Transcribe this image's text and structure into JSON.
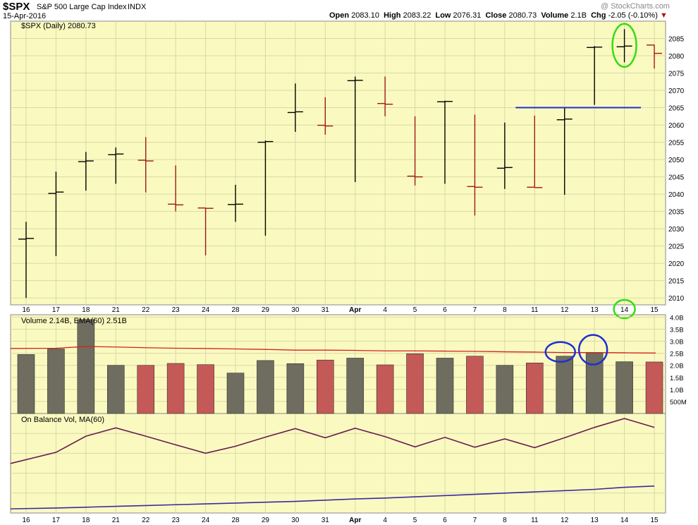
{
  "header": {
    "symbol": "$SPX",
    "name": "S&P 500 Large Cap Index",
    "exchange": "INDX",
    "date": "15-Apr-2016",
    "watermark": "@ StockCharts.com",
    "stats": {
      "open_label": "Open",
      "open": "2083.10",
      "high_label": "High",
      "high": "2083.22",
      "low_label": "Low",
      "low": "2076.31",
      "close_label": "Close",
      "close": "2080.73",
      "volume_label": "Volume",
      "volume": "2.1B",
      "chg_label": "Chg",
      "chg": "-2.05 (-0.10%)"
    }
  },
  "chart_data": [
    {
      "type": "ohlc",
      "legend": "$SPX (Daily) 2080.73",
      "categories": [
        "16",
        "17",
        "18",
        "21",
        "22",
        "23",
        "24",
        "28",
        "29",
        "30",
        "31",
        "Apr",
        "4",
        "5",
        "6",
        "7",
        "8",
        "11",
        "12",
        "13",
        "14",
        "15"
      ],
      "ylim": [
        2008,
        2090
      ],
      "yticks": [
        2010,
        2015,
        2020,
        2025,
        2030,
        2035,
        2040,
        2045,
        2050,
        2055,
        2060,
        2065,
        2070,
        2075,
        2080,
        2085
      ],
      "series": [
        {
          "open": 2027.0,
          "high": 2032.0,
          "low": 2010.0,
          "close": 2027.2,
          "direction": "up"
        },
        {
          "open": 2040.2,
          "high": 2046.5,
          "low": 2022.1,
          "close": 2040.6,
          "direction": "up"
        },
        {
          "open": 2049.4,
          "high": 2052.2,
          "low": 2041.0,
          "close": 2049.6,
          "direction": "up"
        },
        {
          "open": 2051.4,
          "high": 2053.5,
          "low": 2043.0,
          "close": 2051.6,
          "direction": "up"
        },
        {
          "open": 2049.8,
          "high": 2056.5,
          "low": 2040.5,
          "close": 2049.6,
          "direction": "down"
        },
        {
          "open": 2037.1,
          "high": 2048.3,
          "low": 2035.0,
          "close": 2036.9,
          "direction": "down"
        },
        {
          "open": 2036.0,
          "high": 2036.0,
          "low": 2022.3,
          "close": 2035.9,
          "direction": "down"
        },
        {
          "open": 2037.0,
          "high": 2042.7,
          "low": 2032.0,
          "close": 2037.1,
          "direction": "up"
        },
        {
          "open": 2055.0,
          "high": 2055.5,
          "low": 2028.0,
          "close": 2055.2,
          "direction": "up"
        },
        {
          "open": 2063.6,
          "high": 2072.0,
          "low": 2058.0,
          "close": 2063.8,
          "direction": "up"
        },
        {
          "open": 2059.9,
          "high": 2068.0,
          "low": 2057.2,
          "close": 2059.7,
          "direction": "down"
        },
        {
          "open": 2072.8,
          "high": 2074.0,
          "low": 2043.5,
          "close": 2072.9,
          "direction": "up"
        },
        {
          "open": 2066.2,
          "high": 2074.0,
          "low": 2062.5,
          "close": 2066.0,
          "direction": "down"
        },
        {
          "open": 2045.2,
          "high": 2062.5,
          "low": 2042.5,
          "close": 2045.0,
          "direction": "down"
        },
        {
          "open": 2066.7,
          "high": 2067.0,
          "low": 2043.0,
          "close": 2066.8,
          "direction": "up"
        },
        {
          "open": 2042.2,
          "high": 2063.0,
          "low": 2033.8,
          "close": 2042.0,
          "direction": "down"
        },
        {
          "open": 2047.5,
          "high": 2060.7,
          "low": 2041.5,
          "close": 2047.7,
          "direction": "up"
        },
        {
          "open": 2042.0,
          "high": 2062.7,
          "low": 2042.0,
          "close": 2041.9,
          "direction": "down"
        },
        {
          "open": 2061.5,
          "high": 2065.0,
          "low": 2039.8,
          "close": 2061.7,
          "direction": "up"
        },
        {
          "open": 2082.4,
          "high": 2082.8,
          "low": 2065.8,
          "close": 2082.5,
          "direction": "up"
        },
        {
          "open": 2082.6,
          "high": 2087.7,
          "low": 2078.1,
          "close": 2082.8,
          "direction": "up"
        },
        {
          "open": 2083.1,
          "high": 2083.2,
          "low": 2076.3,
          "close": 2080.7,
          "direction": "down"
        }
      ],
      "annotations": [
        {
          "type": "hline",
          "y": 2065,
          "from": "11",
          "to": "15",
          "color": "#1f2fd1"
        },
        {
          "type": "ellipse",
          "category": "14",
          "y": [
            2078,
            2088
          ],
          "color": "#33dd11"
        },
        {
          "type": "ellipse",
          "category": "14",
          "axis": "x",
          "color": "#33dd11"
        }
      ]
    },
    {
      "type": "bar",
      "legend": "Volume 2.14B, EMA(60) 2.51B",
      "categories": [
        "16",
        "17",
        "18",
        "21",
        "22",
        "23",
        "24",
        "28",
        "29",
        "30",
        "31",
        "Apr",
        "4",
        "5",
        "6",
        "7",
        "8",
        "11",
        "12",
        "13",
        "14",
        "15"
      ],
      "values": [
        2.45,
        2.68,
        3.9,
        2.0,
        2.0,
        2.08,
        2.03,
        1.68,
        2.2,
        2.07,
        2.22,
        2.3,
        2.02,
        2.48,
        2.3,
        2.38,
        2.0,
        2.1,
        2.38,
        2.5,
        2.15,
        2.14
      ],
      "ema": [
        2.7,
        2.71,
        2.78,
        2.76,
        2.73,
        2.71,
        2.7,
        2.68,
        2.66,
        2.63,
        2.63,
        2.62,
        2.6,
        2.6,
        2.59,
        2.58,
        2.56,
        2.55,
        2.53,
        2.53,
        2.52,
        2.51
      ],
      "colors": {
        "up": "#6e6d5f",
        "down": "#c35a57",
        "ema": "#d62020"
      },
      "ylim": [
        0,
        4.1
      ],
      "yticks": [
        {
          "v": 0.5,
          "label": "500M"
        },
        {
          "v": 1.0,
          "label": "1.0B"
        },
        {
          "v": 1.5,
          "label": "1.5B"
        },
        {
          "v": 2.0,
          "label": "2.0B"
        },
        {
          "v": 2.5,
          "label": "2.5B"
        },
        {
          "v": 3.0,
          "label": "3.0B"
        },
        {
          "v": 3.5,
          "label": "3.5B"
        },
        {
          "v": 4.0,
          "label": "4.0B"
        }
      ],
      "annotations": [
        {
          "type": "ellipse",
          "category": "12",
          "color": "#1f2fd1"
        },
        {
          "type": "ellipse",
          "category": "13",
          "color": "#1f2fd1"
        }
      ]
    },
    {
      "type": "line",
      "legend": "On Balance Vol, MA(60)",
      "categories": [
        "16",
        "17",
        "18",
        "21",
        "22",
        "23",
        "24",
        "28",
        "29",
        "30",
        "31",
        "Apr",
        "4",
        "5",
        "6",
        "7",
        "8",
        "11",
        "12",
        "13",
        "14",
        "15"
      ],
      "series": [
        {
          "values": [
            2.45,
            5.13,
            9.03,
            11.03,
            9.03,
            6.95,
            4.92,
            6.6,
            8.8,
            10.87,
            8.65,
            10.95,
            8.93,
            6.45,
            8.75,
            6.37,
            8.37,
            6.27,
            8.65,
            11.15,
            13.3,
            11.16
          ],
          "color": "#6b1a4f"
        },
        {
          "values": [
            -8.5,
            -8.3,
            -8.1,
            -7.9,
            -7.7,
            -7.5,
            -7.3,
            -7.1,
            -6.9,
            -6.7,
            -6.4,
            -6.1,
            -5.9,
            -5.6,
            -5.3,
            -5.0,
            -4.7,
            -4.4,
            -4.1,
            -3.8,
            -3.3,
            -3.0
          ],
          "color": "#3a2aa0"
        }
      ],
      "ylim": [
        -9.5,
        14.5
      ]
    }
  ]
}
